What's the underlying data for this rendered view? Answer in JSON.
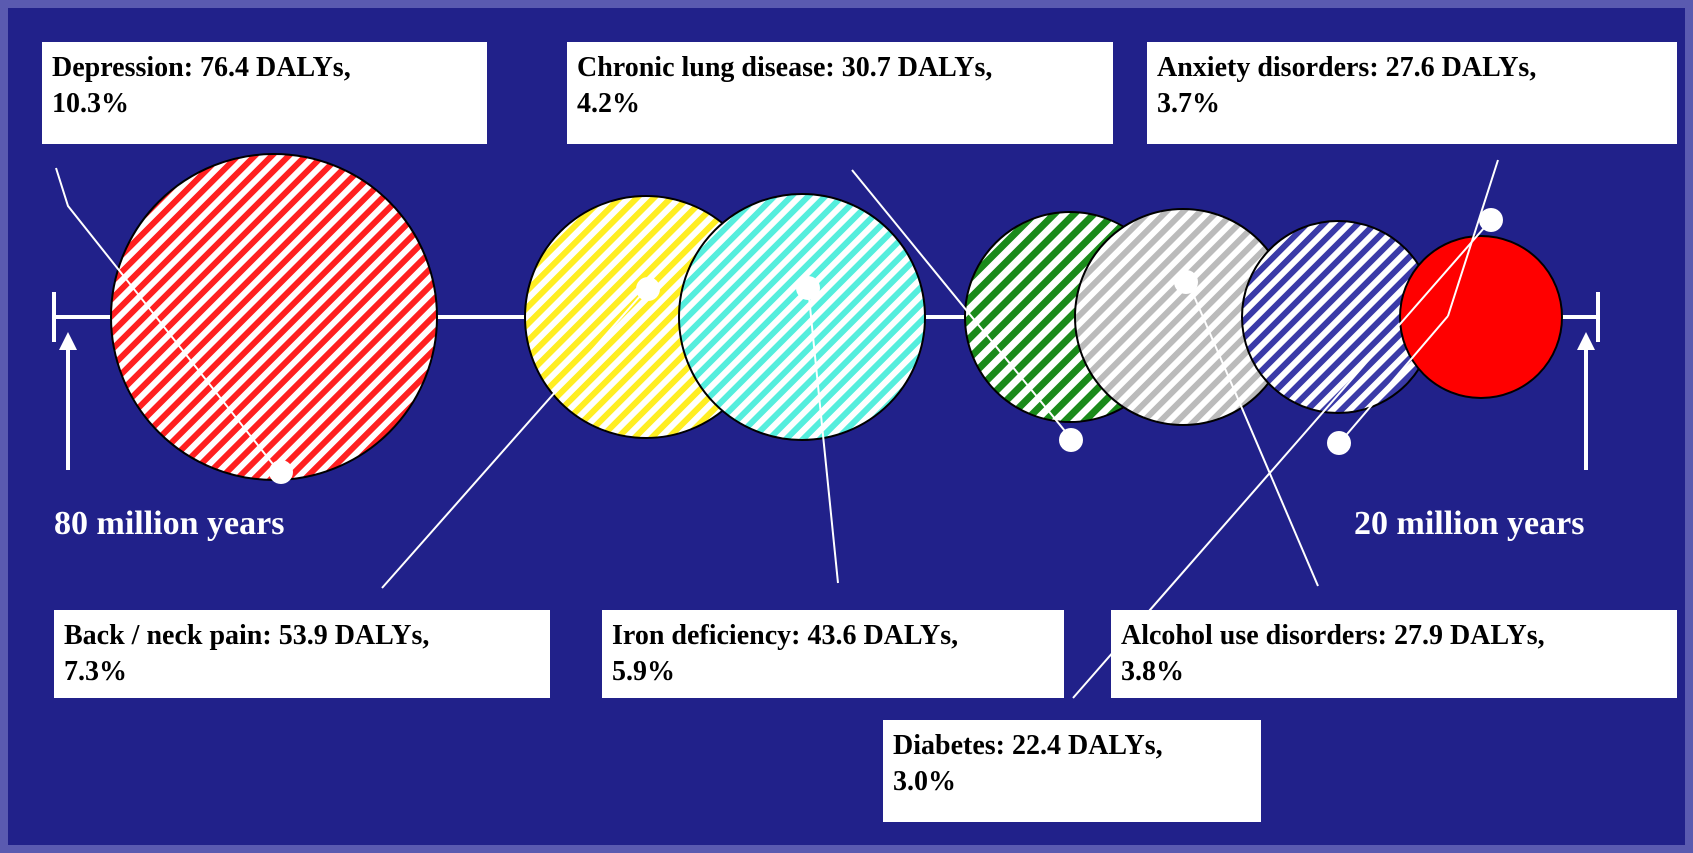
{
  "labels": {
    "depression": "Depression: 76.4 DALYs,\n10.3%",
    "chronic_lung": "Chronic lung disease: 30.7 DALYs,\n4.2%",
    "anxiety": "Anxiety disorders: 27.6 DALYs,\n3.7%",
    "back_neck": "Back / neck pain: 53.9 DALYs,\n7.3%",
    "iron": "Iron deficiency: 43.6 DALYs,\n5.9%",
    "alcohol": "Alcohol use disorders: 27.9 DALYs,\n3.8%",
    "diabetes": "Diabetes: 22.4 DALYs,\n3.0%"
  },
  "axis": {
    "left_label": "80 million years",
    "right_label": "20 million years"
  },
  "colors": {
    "background": "#21218a",
    "depression": "#ff2020",
    "back_neck": "#ffee22",
    "iron": "#55eedd",
    "chronic_lung": "#1a8a1a",
    "alcohol": "#bbbbbb",
    "anxiety": "#3a3aa8",
    "diabetes": "#ff0000"
  }
}
